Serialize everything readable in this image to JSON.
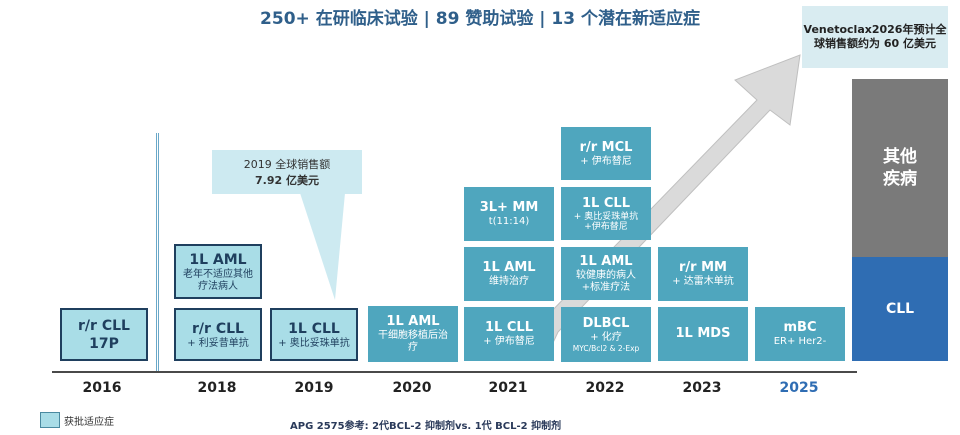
{
  "title": "250+ 在研临床试验 | 89 赞助试验 | 13 个潜在新适应症",
  "callout_2019": {
    "line1": "2019 全球销售额",
    "line2": "7.92 亿美元"
  },
  "callout_2026": "Venetoclax2026年预计全球销售额约为 60 亿美元",
  "bar_other": "其他\n疾病",
  "bar_cll": "CLL",
  "years": [
    "2016",
    "2018",
    "2019",
    "2020",
    "2021",
    "2022",
    "2023",
    "2025"
  ],
  "boxes": {
    "b2016": {
      "title": "r/r CLL",
      "sub": "17P"
    },
    "b2018a": {
      "title": "1L AML",
      "sub": "老年不适应其他疗法病人"
    },
    "b2018b": {
      "title": "r/r CLL",
      "sub": "+ 利妥昔单抗"
    },
    "b2019": {
      "title": "1L CLL",
      "sub": "+ 奥比妥珠单抗"
    },
    "b2020": {
      "title": "1L AML",
      "sub": "干细胞移植后治疗"
    },
    "b2021a": {
      "title": "3L+ MM",
      "sub": "t(11:14)"
    },
    "b2021b": {
      "title": "1L AML",
      "sub": "维持治疗"
    },
    "b2021c": {
      "title": "1L CLL",
      "sub": "+ 伊布替尼"
    },
    "b2022a": {
      "title": "r/r MCL",
      "sub": "+ 伊布替尼"
    },
    "b2022b": {
      "title": "1L CLL",
      "sub": "+ 奥比妥珠单抗 +伊布替尼"
    },
    "b2022c": {
      "title": "1L AML",
      "sub": "较健康的病人 +标准疗法"
    },
    "b2022d": {
      "title": "DLBCL",
      "sub": "+ 化疗",
      "sub2": "MYC/Bcl2 & 2-Exp"
    },
    "b2023a": {
      "title": "r/r MM",
      "sub": "+ 达雷木单抗"
    },
    "b2023b": {
      "title": "1L MDS"
    },
    "b2025": {
      "title": "mBC",
      "sub": "ER+ Her2-"
    }
  },
  "legend": "获批适应症",
  "footnote": "APG 2575参考: 2代BCL-2 抑制剂vs. 1代 BCL-2 抑制剂",
  "colors": {
    "box": "#4fa6be",
    "approved": "#a9dde7",
    "title": "#2f5f8a",
    "other": "#7a7a7a",
    "cll": "#2f6db3"
  }
}
